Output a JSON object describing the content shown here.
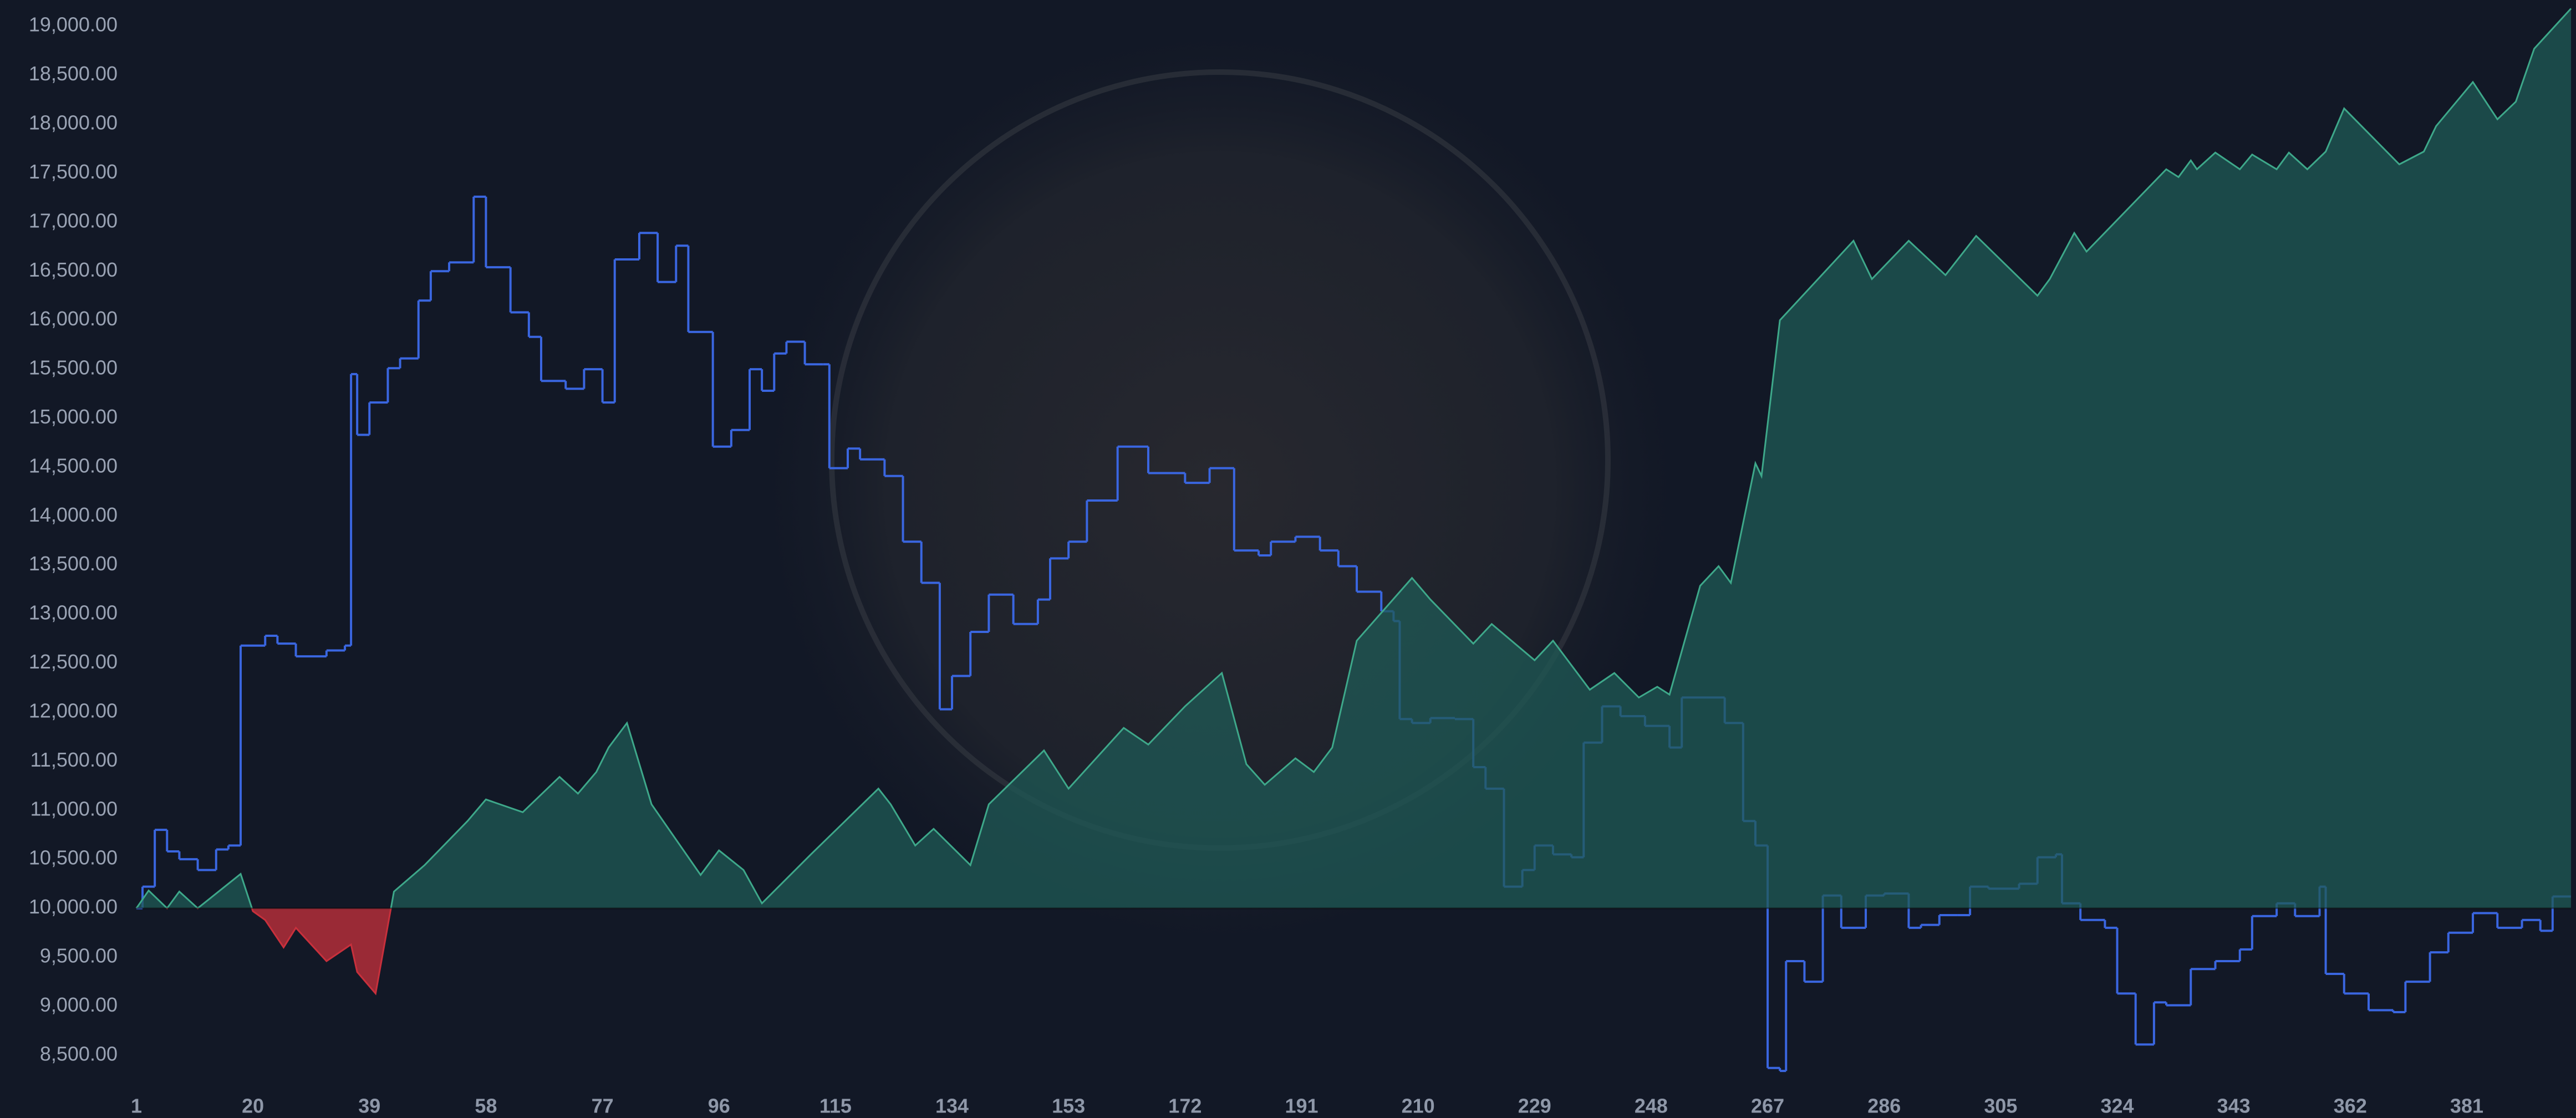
{
  "chart_data": {
    "type": "line",
    "xlim": [
      1,
      398
    ],
    "xticks": [
      1,
      20,
      39,
      58,
      77,
      96,
      115,
      134,
      153,
      172,
      191,
      210,
      229,
      248,
      267,
      286,
      305,
      324,
      343,
      362,
      381
    ],
    "ylim": [
      8250,
      19250
    ],
    "yticks": [
      {
        "value": 8500,
        "label": "8,500.00"
      },
      {
        "value": 9000,
        "label": "9,000.00"
      },
      {
        "value": 9500,
        "label": "9,500.00"
      },
      {
        "value": 10000,
        "label": "10,000.00"
      },
      {
        "value": 10500,
        "label": "10,500.00"
      },
      {
        "value": 11000,
        "label": "11,000.00"
      },
      {
        "value": 11500,
        "label": "11,500.00"
      },
      {
        "value": 12000,
        "label": "12,000.00"
      },
      {
        "value": 12500,
        "label": "12,500.00"
      },
      {
        "value": 13000,
        "label": "13,000.00"
      },
      {
        "value": 13500,
        "label": "13,500.00"
      },
      {
        "value": 14000,
        "label": "14,000.00"
      },
      {
        "value": 14500,
        "label": "14,500.00"
      },
      {
        "value": 15000,
        "label": "15,000.00"
      },
      {
        "value": 15500,
        "label": "15,500.00"
      },
      {
        "value": 16000,
        "label": "16,000.00"
      },
      {
        "value": 16500,
        "label": "16,500.00"
      },
      {
        "value": 17000,
        "label": "17,000.00"
      },
      {
        "value": 17500,
        "label": "17,500.00"
      },
      {
        "value": 18000,
        "label": "18,000.00"
      },
      {
        "value": 18500,
        "label": "18,500.00"
      },
      {
        "value": 19000,
        "label": "19,000.00"
      }
    ],
    "baseline": 10000,
    "series": [
      {
        "color": "#3a66e0",
        "step": true,
        "x": [
          1,
          2,
          4,
          6,
          8,
          11,
          14,
          16,
          18,
          22,
          24,
          27,
          32,
          35,
          36,
          37,
          39,
          42,
          44,
          47,
          49,
          52,
          56,
          58,
          62,
          65,
          67,
          71,
          74,
          77,
          79,
          83,
          86,
          89,
          91,
          95,
          98,
          101,
          103,
          105,
          107,
          110,
          113,
          114,
          117,
          119,
          123,
          126,
          129,
          132,
          134,
          137,
          140,
          144,
          148,
          150,
          153,
          156,
          161,
          166,
          172,
          176,
          180,
          184,
          186,
          190,
          194,
          197,
          200,
          204,
          206,
          207,
          209,
          212,
          216,
          219,
          221,
          224,
          227,
          229,
          232,
          235,
          237,
          240,
          243,
          247,
          251,
          253,
          257,
          260,
          263,
          265,
          267,
          269,
          270,
          273,
          276,
          279,
          283,
          286,
          290,
          292,
          295,
          298,
          300,
          303,
          308,
          311,
          314,
          315,
          318,
          322,
          324,
          327,
          330,
          332,
          336,
          340,
          344,
          346,
          350,
          353,
          357,
          358,
          361,
          365,
          369,
          371,
          375,
          378,
          382,
          386,
          390,
          393,
          395,
          398
        ],
        "values": [
          10000,
          10220,
          10800,
          10580,
          10500,
          10390,
          10600,
          10640,
          12680,
          12780,
          12700,
          12570,
          12630,
          12680,
          15450,
          14830,
          15160,
          15510,
          15610,
          16200,
          16500,
          16590,
          17260,
          16540,
          16080,
          15830,
          15380,
          15300,
          15500,
          15160,
          16620,
          16890,
          16390,
          16760,
          15880,
          14710,
          14880,
          15500,
          15280,
          15660,
          15780,
          15550,
          15550,
          14490,
          14690,
          14580,
          14410,
          13740,
          13320,
          12030,
          12370,
          12820,
          13200,
          12900,
          13150,
          13570,
          13740,
          14160,
          14710,
          14440,
          14340,
          14490,
          13650,
          13600,
          13740,
          13790,
          13650,
          13490,
          13230,
          13030,
          12930,
          11930,
          11890,
          11940,
          11930,
          11440,
          11220,
          10220,
          10390,
          10640,
          10550,
          10520,
          11690,
          12060,
          11960,
          11860,
          11640,
          12150,
          12150,
          11890,
          10890,
          10640,
          8370,
          8340,
          9460,
          9250,
          10130,
          9800,
          10130,
          10150,
          9800,
          9830,
          9930,
          9930,
          10220,
          10200,
          10250,
          10520,
          10550,
          10050,
          9880,
          9800,
          9130,
          8610,
          9040,
          9010,
          9380,
          9460,
          9580,
          9920,
          10050,
          9920,
          10220,
          9330,
          9130,
          8960,
          8940,
          9250,
          9550,
          9750,
          9950,
          9800,
          9880,
          9770,
          10120,
          10120
        ]
      },
      {
        "color": "#3ea88a",
        "area_above": "#1f5a55",
        "area_below": "#c8303c",
        "x": [
          1,
          3,
          6,
          8,
          11,
          18,
          20,
          22,
          25,
          27,
          32,
          36,
          37,
          40,
          43,
          48,
          55,
          58,
          64,
          70,
          73,
          76,
          78,
          81,
          85,
          93,
          96,
          100,
          103,
          111,
          122,
          124,
          128,
          131,
          137,
          140,
          149,
          153,
          162,
          166,
          172,
          178,
          182,
          185,
          190,
          193,
          196,
          200,
          209,
          212,
          219,
          222,
          229,
          232,
          238,
          242,
          246,
          249,
          251,
          256,
          259,
          261,
          265,
          266,
          269,
          281,
          284,
          290,
          296,
          301,
          311,
          313,
          317,
          319,
          332,
          334,
          336,
          337,
          340,
          344,
          346,
          350,
          352,
          355,
          358,
          361,
          370,
          374,
          376,
          382,
          386,
          389,
          392,
          398
        ],
        "values": [
          10000,
          10180,
          10000,
          10170,
          10000,
          10350,
          9970,
          9880,
          9600,
          9800,
          9460,
          9630,
          9350,
          9130,
          10170,
          10440,
          10890,
          11110,
          10980,
          11340,
          11170,
          11390,
          11640,
          11890,
          11060,
          10340,
          10590,
          10390,
          10050,
          10550,
          11220,
          11060,
          10640,
          10810,
          10440,
          11060,
          11610,
          11220,
          11840,
          11670,
          12060,
          12400,
          11470,
          11260,
          11530,
          11390,
          11640,
          12730,
          13370,
          13150,
          12700,
          12900,
          12530,
          12730,
          12230,
          12400,
          12150,
          12260,
          12180,
          13290,
          13490,
          13320,
          14540,
          14410,
          16000,
          16810,
          16420,
          16810,
          16460,
          16860,
          16250,
          16420,
          16890,
          16700,
          17540,
          17460,
          17630,
          17540,
          17710,
          17540,
          17690,
          17540,
          17710,
          17540,
          17720,
          18160,
          17590,
          17720,
          17980,
          18430,
          18050,
          18230,
          18770,
          19180
        ]
      }
    ]
  }
}
